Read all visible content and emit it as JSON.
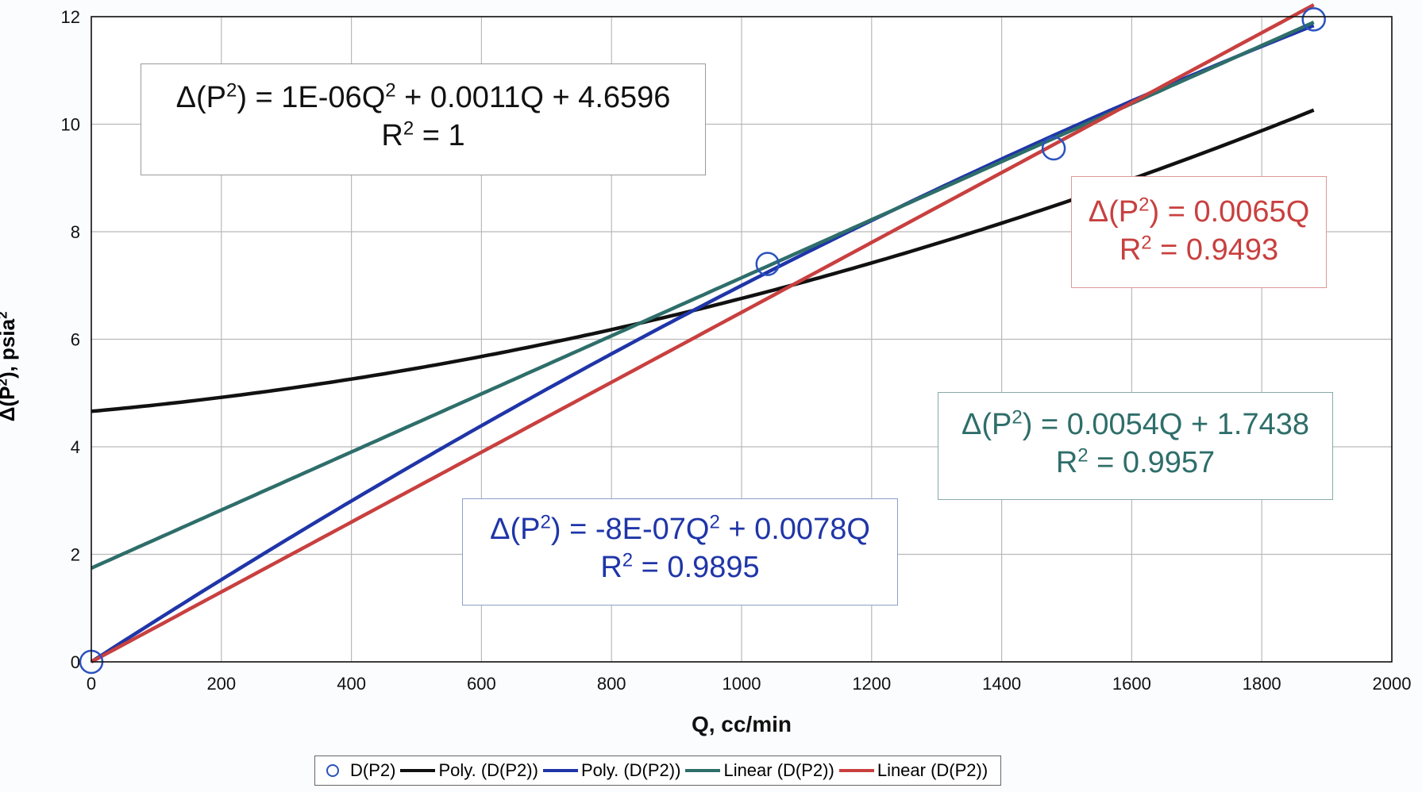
{
  "chart_data": {
    "type": "scatter",
    "xlabel": "Q, cc/min",
    "ylabel_parts": {
      "pre": "Δ(P",
      "sup1": "2",
      "mid": "), psia",
      "sup2": "2"
    },
    "xlim": [
      0,
      2000
    ],
    "ylim": [
      0,
      12
    ],
    "x_ticks": [
      "0",
      "200",
      "400",
      "600",
      "800",
      "1000",
      "1200",
      "1400",
      "1600",
      "1800",
      "2000"
    ],
    "y_ticks": [
      "0",
      "2",
      "4",
      "6",
      "8",
      "10",
      "12"
    ],
    "grid": true,
    "points": {
      "name": "D(P2)",
      "x": [
        0,
        1040,
        1480,
        1880
      ],
      "y": [
        0,
        7.4,
        9.55,
        11.95
      ],
      "color": "#2a52be"
    },
    "trendlines": [
      {
        "name": "Poly. (D(P2))",
        "kind": "poly2",
        "coef": [
          1e-06,
          0.0011,
          4.6596
        ],
        "x_range": [
          0,
          1880
        ],
        "color": "#111111"
      },
      {
        "name": "Poly. (D(P2))",
        "kind": "poly2",
        "coef": [
          -8e-07,
          0.0078,
          0
        ],
        "x_range": [
          0,
          1880
        ],
        "color": "#1f35a8"
      },
      {
        "name": "Linear (D(P2))",
        "kind": "linear",
        "coef": [
          0.0054,
          1.7438
        ],
        "x_range": [
          0,
          1880
        ],
        "color": "#2e6e6a"
      },
      {
        "name": "Linear (D(P2))",
        "kind": "linear",
        "coef": [
          0.0065,
          0
        ],
        "x_range": [
          0,
          1880
        ],
        "color": "#c8403f"
      }
    ],
    "annotations": [
      {
        "id": "poly-black",
        "line1": {
          "pre": "Δ(P",
          "sup": "2",
          "post": ") = 1E-06Q",
          "sup2": "2",
          "post2": " + 0.0011Q + 4.6596"
        },
        "line2": {
          "pre": "R",
          "sup": "2",
          "post": " = 1"
        },
        "color": "#111111"
      },
      {
        "id": "linear-red",
        "line1": {
          "pre": "Δ(P",
          "sup": "2",
          "post": ") = 0.0065Q",
          "sup2": "",
          "post2": ""
        },
        "line2": {
          "pre": "R",
          "sup": "2",
          "post": " = 0.9493"
        },
        "color": "#c8403f"
      },
      {
        "id": "linear-teal",
        "line1": {
          "pre": "Δ(P",
          "sup": "2",
          "post": ") = 0.0054Q + 1.7438",
          "sup2": "",
          "post2": ""
        },
        "line2": {
          "pre": "R",
          "sup": "2",
          "post": " = 0.9957"
        },
        "color": "#2e6e6a"
      },
      {
        "id": "poly-blue",
        "line1": {
          "pre": "Δ(P",
          "sup": "2",
          "post": ") = -8E-07Q",
          "sup2": "2",
          "post2": " + 0.0078Q"
        },
        "line2": {
          "pre": "R",
          "sup": "2",
          "post": " = 0.9895"
        },
        "color": "#1f35a8"
      }
    ],
    "legend": {
      "position": "bottom",
      "entries": [
        {
          "label": "D(P2)",
          "kind": "marker",
          "color": "#2a52be"
        },
        {
          "label": "Poly. (D(P2))",
          "kind": "line",
          "color": "#111111"
        },
        {
          "label": "Poly. (D(P2))",
          "kind": "line",
          "color": "#1f35a8"
        },
        {
          "label": "Linear (D(P2))",
          "kind": "line",
          "color": "#2e6e6a"
        },
        {
          "label": "Linear (D(P2))",
          "kind": "line",
          "color": "#c8403f"
        }
      ]
    }
  }
}
